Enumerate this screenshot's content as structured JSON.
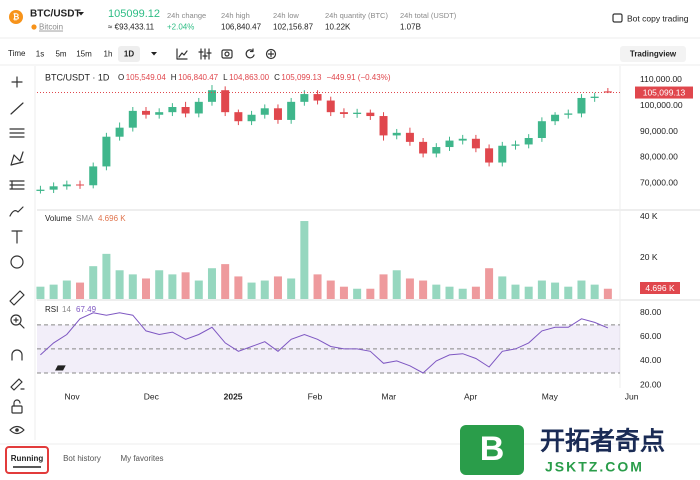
{
  "header": {
    "symbol": "BTC/USDT",
    "name": "Bitcoin",
    "price": "105099.12",
    "price_eur": "≈ €93,433.11",
    "stats": [
      {
        "label": "24h change",
        "value": "+2.04%"
      },
      {
        "label": "24h high",
        "value": "106,840.47"
      },
      {
        "label": "24h low",
        "value": "102,156.87"
      },
      {
        "label": "24h quantity (BTC)",
        "value": "10.22K"
      },
      {
        "label": "24h total (USDT)",
        "value": "1.07B"
      }
    ],
    "bot_copy": "Bot copy trading"
  },
  "toolbar": {
    "time": "Time",
    "intervals": [
      "1s",
      "5m",
      "15m",
      "1h",
      "1D"
    ],
    "selected": 4,
    "tradingview": "Tradingview"
  },
  "chart_data": {
    "type": "candlestick",
    "title": "BTC/USDT · 1D",
    "legend": [
      {
        "key": "O",
        "text": "105,549.04"
      },
      {
        "key": "H",
        "text": "106,840.47"
      },
      {
        "key": "L",
        "text": "104,863.00"
      },
      {
        "key": "C",
        "text": "105,099.13"
      }
    ],
    "change": "−449.91 (−0.43%)",
    "up_color": "#3fb68b",
    "down_color": "#e0474d",
    "x": [
      0,
      5,
      10,
      15,
      20,
      25,
      30,
      35,
      40,
      45,
      50,
      55,
      60,
      65,
      70,
      75,
      80,
      85,
      90,
      95,
      100,
      105,
      110,
      115,
      120,
      125,
      130,
      135,
      140,
      145,
      150,
      155,
      160,
      165,
      170,
      175,
      180,
      185,
      190,
      195,
      200,
      205,
      210,
      215
    ],
    "xlim": [
      -1.3,
      219.6
    ],
    "xticks": [
      {
        "value": 12,
        "label": "Nov"
      },
      {
        "value": 42,
        "label": "Dec"
      },
      {
        "value": 73,
        "label": "2025",
        "bold": true
      },
      {
        "value": 104,
        "label": "Feb"
      },
      {
        "value": 132,
        "label": "Mar"
      },
      {
        "value": 163,
        "label": "Apr"
      },
      {
        "value": 193,
        "label": "May"
      },
      {
        "value": 224,
        "label": "Jun"
      }
    ],
    "open": [
      67000,
      67500,
      68800,
      69500,
      69200,
      76500,
      88000,
      91500,
      98000,
      96500,
      97500,
      99500,
      97000,
      101500,
      106000,
      97500,
      94000,
      96500,
      99000,
      94500,
      101500,
      104500,
      102000,
      97500,
      96800,
      97300,
      96000,
      88500,
      89500,
      86000,
      81500,
      84000,
      86500,
      87200,
      83500,
      78000,
      84500,
      85000,
      87500,
      94000,
      96500,
      97000,
      103000,
      105549.04
    ],
    "high": [
      69000,
      70300,
      71000,
      71000,
      78000,
      89500,
      93500,
      99500,
      99500,
      99000,
      101000,
      101500,
      103000,
      108000,
      107500,
      98500,
      98000,
      100500,
      100500,
      103000,
      106000,
      106000,
      103500,
      99000,
      98800,
      98500,
      97500,
      91000,
      91500,
      87500,
      85500,
      88000,
      88700,
      88700,
      85000,
      86000,
      86500,
      89000,
      95500,
      97500,
      98500,
      104500,
      105000,
      106840.47
    ],
    "low": [
      66000,
      66200,
      67500,
      67800,
      68000,
      75000,
      86500,
      90000,
      95000,
      95000,
      96000,
      95500,
      95500,
      100000,
      96000,
      92500,
      92500,
      95000,
      93000,
      93000,
      100000,
      100500,
      96000,
      95300,
      95300,
      94500,
      86500,
      87000,
      84500,
      80000,
      80000,
      82500,
      85000,
      82000,
      76500,
      76500,
      83000,
      83500,
      86000,
      92500,
      95000,
      95500,
      101500,
      104863
    ],
    "close": [
      67500,
      68800,
      69500,
      69200,
      76500,
      88000,
      91500,
      98000,
      96500,
      97500,
      99500,
      97000,
      101500,
      106000,
      97500,
      94000,
      96500,
      99000,
      94500,
      101500,
      104500,
      102000,
      97500,
      96800,
      97300,
      96000,
      88500,
      89500,
      86000,
      81500,
      84000,
      86500,
      87200,
      83500,
      78000,
      84500,
      85000,
      87500,
      94000,
      96500,
      97000,
      103000,
      103500,
      105099.13
    ],
    "ylim": [
      60400,
      114600
    ],
    "yticks": [
      {
        "value": 110000,
        "label": "110,000.00"
      },
      {
        "value": 100000,
        "label": "100,000.00"
      },
      {
        "value": 90000,
        "label": "90,000.00"
      },
      {
        "value": 80000,
        "label": "80,000.00"
      },
      {
        "value": 70000,
        "label": "70,000.00"
      }
    ],
    "last_price": {
      "value": 105099.13,
      "label": "105,099.13"
    },
    "panes": [
      {
        "name": "Volume",
        "indicator": "SMA",
        "value": 4696,
        "value_label": "4.696 K",
        "values": [
          6000,
          7000,
          9000,
          8000,
          16000,
          22000,
          14000,
          12000,
          10000,
          14000,
          12000,
          13000,
          9000,
          15000,
          17000,
          11000,
          8000,
          9000,
          11000,
          10000,
          38000,
          12000,
          9000,
          6000,
          5000,
          5000,
          12000,
          14000,
          10000,
          9000,
          7000,
          6000,
          5000,
          6000,
          15000,
          11000,
          7000,
          6000,
          9000,
          8000,
          6000,
          9000,
          7000,
          5000
        ],
        "ylim": [
          0,
          42400
        ],
        "yticks": [
          {
            "value": 40000,
            "label": "40 K"
          },
          {
            "value": 20000,
            "label": "20 K"
          }
        ]
      },
      {
        "name": "RSI",
        "indicator": "14",
        "value": 67.49,
        "color": "#7e57c2",
        "values": [
          45,
          55,
          62,
          75,
          80,
          78,
          80,
          78,
          65,
          62,
          64,
          58,
          62,
          68,
          55,
          48,
          52,
          56,
          48,
          58,
          62,
          58,
          52,
          50,
          50,
          48,
          38,
          40,
          36,
          30,
          40,
          45,
          46,
          42,
          35,
          48,
          50,
          55,
          65,
          68,
          68,
          75,
          72,
          67.49
        ],
        "ylim": [
          20,
          89
        ],
        "yticks": [
          {
            "value": 80,
            "label": "80.00"
          },
          {
            "value": 60,
            "label": "60.00"
          },
          {
            "value": 40,
            "label": "40.00"
          },
          {
            "value": 20,
            "label": "20.00"
          }
        ],
        "levels": [
          30,
          50,
          70
        ]
      }
    ]
  },
  "tabs": {
    "items": [
      "Running",
      "Bot history",
      "My favorites"
    ],
    "active": 0
  },
  "watermark": {
    "letter": "B",
    "title": "开拓者奇点",
    "url": "JSKTZ.COM"
  }
}
